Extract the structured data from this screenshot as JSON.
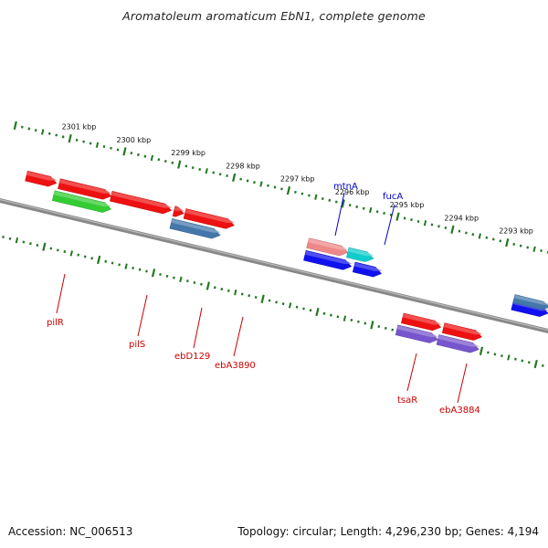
{
  "title": "Aromatoleum aromaticum EbN1, complete genome",
  "footer": {
    "accession": "Accession: NC_006513",
    "topology": "Topology: circular; Length: 4,296,230 bp; Genes: 4,194"
  },
  "ruler": {
    "unit": "kbp",
    "ticks": [
      2301,
      2300,
      2299,
      2298,
      2297,
      2296,
      2295,
      2294,
      2293
    ]
  },
  "features": [
    {
      "track": "fwd-outer",
      "start_kbp": 2301.6,
      "end_kbp": 2301.05,
      "color": "#ee1111",
      "label": ""
    },
    {
      "track": "fwd-outer",
      "start_kbp": 2301.0,
      "end_kbp": 2300.05,
      "color": "#ee1111",
      "label": ""
    },
    {
      "track": "fwd-outer",
      "start_kbp": 2300.05,
      "end_kbp": 2298.95,
      "color": "#ee1111",
      "label": ""
    },
    {
      "track": "fwd-outer",
      "start_kbp": 2298.9,
      "end_kbp": 2298.72,
      "color": "#ee1111",
      "label": ""
    },
    {
      "track": "fwd-outer",
      "start_kbp": 2298.7,
      "end_kbp": 2297.8,
      "color": "#ee1111",
      "label": ""
    },
    {
      "track": "fwd-outer",
      "start_kbp": 2296.45,
      "end_kbp": 2295.72,
      "color": "#ee8888",
      "label": ""
    },
    {
      "track": "fwd-outer",
      "start_kbp": 2295.72,
      "end_kbp": 2295.25,
      "color": "#11cccc",
      "label": ""
    },
    {
      "track": "fwd-inner",
      "start_kbp": 2301.05,
      "end_kbp": 2300.0,
      "color": "#33cc33",
      "label": ""
    },
    {
      "track": "fwd-inner",
      "start_kbp": 2298.9,
      "end_kbp": 2298.0,
      "color": "#4477aa",
      "label": ""
    },
    {
      "track": "fwd-inner",
      "start_kbp": 2296.45,
      "end_kbp": 2295.6,
      "color": "#1111ee",
      "label": ""
    },
    {
      "track": "fwd-inner",
      "start_kbp": 2295.55,
      "end_kbp": 2295.05,
      "color": "#1111ee",
      "label": ""
    },
    {
      "track": "fwd-inner",
      "start_kbp": 2292.65,
      "end_kbp": 2292.0,
      "color": "#1111ee",
      "label": ""
    },
    {
      "track": "fwd-shadow",
      "start_kbp": 2292.65,
      "end_kbp": 2292.0,
      "color": "#4477aa",
      "label": ""
    },
    {
      "track": "rev-outer",
      "start_kbp": 2294.5,
      "end_kbp": 2293.8,
      "color": "#ee1111",
      "label": ""
    },
    {
      "track": "rev-outer",
      "start_kbp": 2293.75,
      "end_kbp": 2293.05,
      "color": "#ee1111",
      "label": ""
    },
    {
      "track": "rev-inner",
      "start_kbp": 2294.55,
      "end_kbp": 2293.8,
      "color": "#7755cc",
      "label": ""
    },
    {
      "track": "rev-inner",
      "start_kbp": 2293.8,
      "end_kbp": 2293.05,
      "color": "#7755cc",
      "label": ""
    }
  ],
  "gene_labels": [
    {
      "name": "pilR",
      "color": "#cc0000"
    },
    {
      "name": "pilS",
      "color": "#cc0000"
    },
    {
      "name": "ebD129",
      "color": "#cc0000"
    },
    {
      "name": "ebA3890",
      "color": "#cc0000"
    },
    {
      "name": "mtnA",
      "color": "#0000cc"
    },
    {
      "name": "fucA",
      "color": "#0000cc"
    },
    {
      "name": "tsaR",
      "color": "#cc0000"
    },
    {
      "name": "ebA3884",
      "color": "#cc0000"
    }
  ],
  "colors": {
    "backbone": "#777777",
    "ruler": "#227722",
    "tick_label": "#111111"
  }
}
